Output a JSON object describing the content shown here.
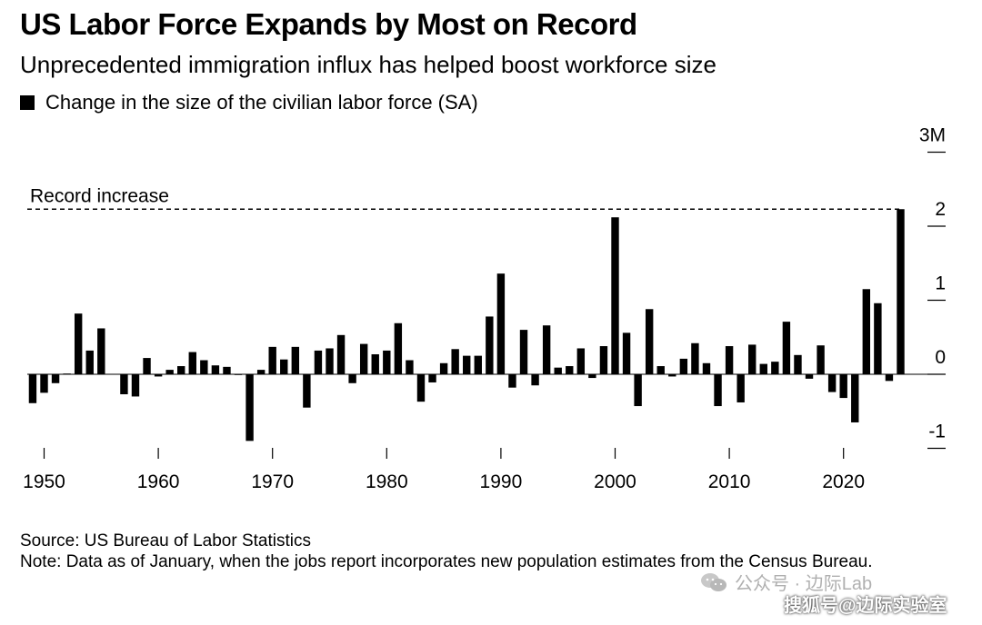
{
  "title": "US Labor Force Expands by Most on Record",
  "subtitle": "Unprecedented immigration influx has helped boost workforce size",
  "legend": {
    "label": "Change in the size of the civilian labor force (SA)",
    "color": "#000000"
  },
  "annotation": {
    "record_label": "Record increase"
  },
  "source": {
    "line1": "Source: US Bureau of Labor Statistics",
    "line2": "Note: Data as of January, when the jobs report incorporates new population estimates from the Census Bureau."
  },
  "watermark": {
    "line1": "公众号 · 边际Lab",
    "line2": "搜狐号@边际实验室"
  },
  "chart_data": {
    "type": "bar",
    "series": [
      {
        "name": "Change in the size of the civilian labor force (SA)"
      }
    ],
    "x": [
      1949,
      1950,
      1951,
      1952,
      1953,
      1954,
      1955,
      1956,
      1957,
      1958,
      1959,
      1960,
      1961,
      1962,
      1963,
      1964,
      1965,
      1966,
      1967,
      1968,
      1969,
      1970,
      1971,
      1972,
      1973,
      1974,
      1975,
      1976,
      1977,
      1978,
      1979,
      1980,
      1981,
      1982,
      1983,
      1984,
      1985,
      1986,
      1987,
      1988,
      1989,
      1990,
      1991,
      1992,
      1993,
      1994,
      1995,
      1996,
      1997,
      1998,
      1999,
      2000,
      2001,
      2002,
      2003,
      2004,
      2005,
      2006,
      2007,
      2008,
      2009,
      2010,
      2011,
      2012,
      2013,
      2014,
      2015,
      2016,
      2017,
      2018,
      2019,
      2020,
      2021,
      2022,
      2023,
      2024
    ],
    "values": [
      -0.39,
      -0.25,
      -0.12,
      0.01,
      0.82,
      0.32,
      0.62,
      0.0,
      -0.27,
      -0.3,
      0.22,
      -0.03,
      0.06,
      0.11,
      0.3,
      0.19,
      0.12,
      0.1,
      -0.01,
      -0.9,
      0.06,
      0.37,
      0.2,
      0.37,
      -0.45,
      0.32,
      0.35,
      0.53,
      -0.12,
      0.41,
      0.27,
      0.32,
      0.69,
      0.19,
      -0.37,
      -0.11,
      0.15,
      0.34,
      0.25,
      0.25,
      0.78,
      1.36,
      -0.18,
      0.6,
      -0.15,
      0.66,
      0.09,
      0.11,
      0.35,
      -0.05,
      0.38,
      2.12,
      0.56,
      -0.43,
      0.88,
      0.11,
      -0.03,
      0.21,
      0.42,
      0.15,
      -0.43,
      0.38,
      -0.38,
      0.4,
      0.14,
      0.17,
      0.71,
      0.26,
      -0.06,
      0.39,
      -0.24,
      -0.32,
      -0.65,
      1.15,
      0.96,
      -0.09
    ],
    "record": {
      "x": 2025,
      "value": 2.23
    },
    "xticks": [
      1950,
      1960,
      1970,
      1980,
      1990,
      2000,
      2010,
      2020
    ],
    "yticks": [
      -1,
      0,
      1,
      2,
      3
    ],
    "ytick_labels": [
      "-1",
      "0",
      "1",
      "2",
      "3M"
    ],
    "ylim": [
      -1,
      3
    ],
    "xlim": [
      1948,
      2027
    ],
    "grid": false,
    "legend_position": "top-left",
    "xlabel": "",
    "ylabel": ""
  }
}
